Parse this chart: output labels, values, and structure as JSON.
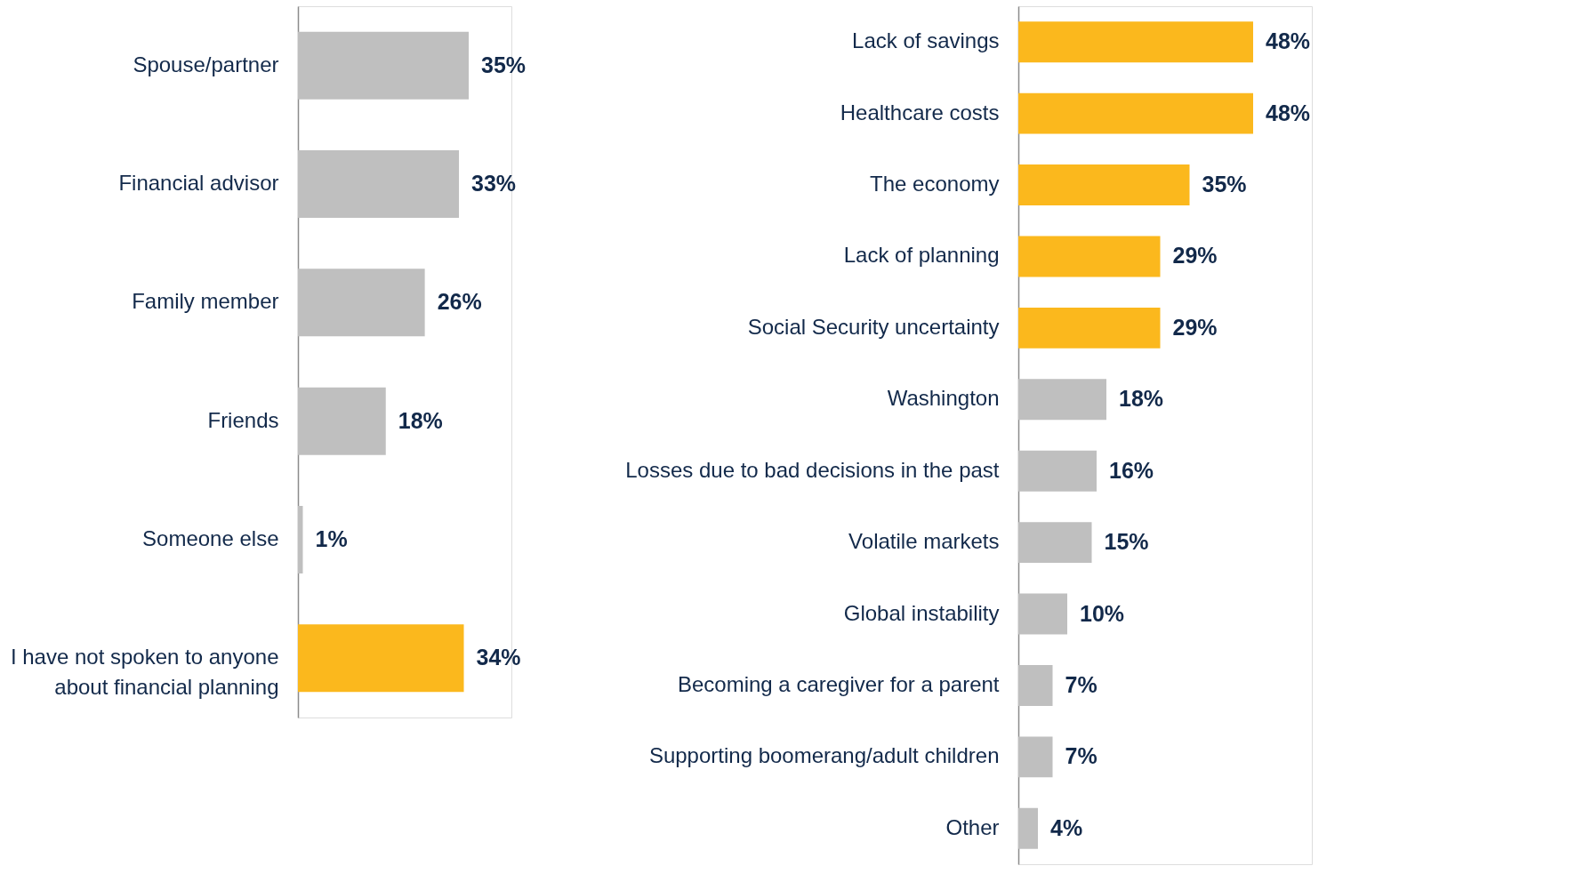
{
  "chart_data": [
    {
      "type": "bar",
      "orientation": "horizontal",
      "categories": [
        "Spouse/partner",
        "Financial advisor",
        "Family member",
        "Friends",
        "Someone else",
        "I have not spoken to anyone\nabout financial planning"
      ],
      "values": [
        35,
        33,
        26,
        18,
        1,
        34
      ],
      "colors": [
        "#bfbfbf",
        "#bfbfbf",
        "#bfbfbf",
        "#bfbfbf",
        "#bfbfbf",
        "#fbb81d"
      ],
      "value_labels": [
        "35%",
        "33%",
        "26%",
        "18%",
        "1%",
        "34%"
      ]
    },
    {
      "type": "bar",
      "orientation": "horizontal",
      "categories": [
        "Lack of savings",
        "Healthcare costs",
        "The economy",
        "Lack of planning",
        "Social Security uncertainty",
        "Washington",
        "Losses due to bad decisions in the past",
        "Volatile markets",
        "Global instability",
        "Becoming a caregiver for a parent",
        "Supporting boomerang/adult children",
        "Other"
      ],
      "values": [
        48,
        48,
        35,
        29,
        29,
        18,
        16,
        15,
        10,
        7,
        7,
        4
      ],
      "colors": [
        "#fbb81d",
        "#fbb81d",
        "#fbb81d",
        "#fbb81d",
        "#fbb81d",
        "#bfbfbf",
        "#bfbfbf",
        "#bfbfbf",
        "#bfbfbf",
        "#bfbfbf",
        "#bfbfbf",
        "#bfbfbf"
      ],
      "value_labels": [
        "48%",
        "48%",
        "35%",
        "29%",
        "29%",
        "18%",
        "16%",
        "15%",
        "10%",
        "7%",
        "7%",
        "4%"
      ]
    }
  ]
}
